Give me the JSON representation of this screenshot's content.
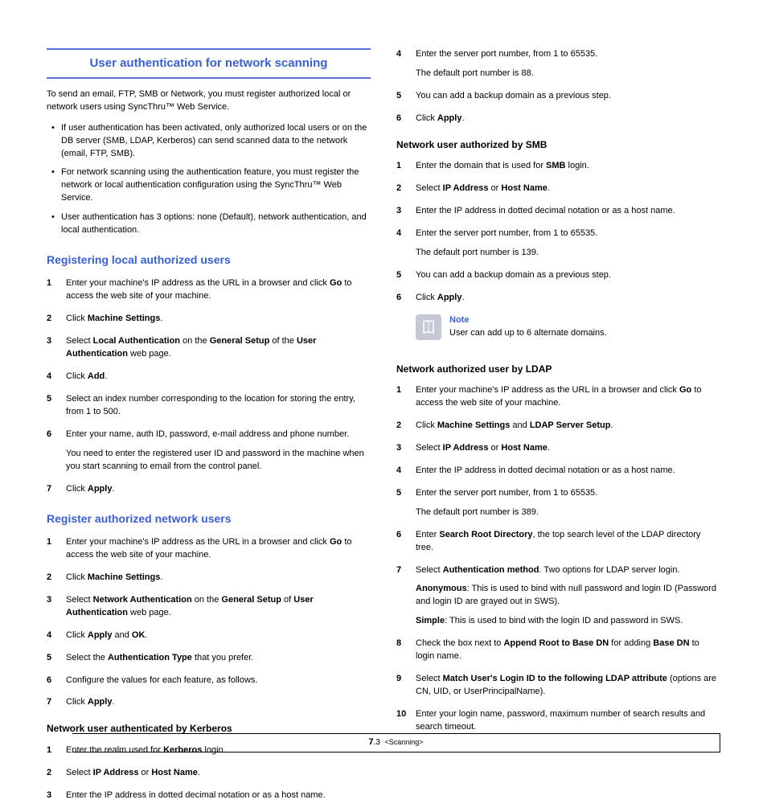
{
  "heading_main": "User authentication for network scanning",
  "intro": "To send an email, FTP, SMB or Network, you must register authorized local or network users using SyncThru™ Web Service.",
  "bullets": [
    "If user authentication has been activated, only authorized local users or on the DB server (SMB, LDAP, Kerberos) can send scanned data to the network (email, FTP, SMB).",
    "For network scanning using the authentication feature, you must register the network or local authentication configuration using the SyncThru™ Web Service.",
    "User authentication has 3 options: none (Default), network authentication, and local authentication."
  ],
  "sec_local": {
    "title": "Registering local authorized users",
    "steps": [
      {
        "pre": "Enter your machine's IP address as the URL in a browser and click ",
        "b1": "Go",
        "post": " to access the web site of your machine."
      },
      {
        "pre": "Click ",
        "b1": "Machine Settings",
        "post": "."
      },
      {
        "pre": "Select ",
        "b1": "Local Authentication",
        "mid": " on the  ",
        "b2": "General Setup",
        "mid2": " of the ",
        "b3": "User Authentication",
        "post": " web page."
      },
      {
        "pre": "Click ",
        "b1": "Add",
        "post": "."
      },
      {
        "plain": "Select an index number corresponding to the location for storing the entry, from 1 to 500."
      },
      {
        "plain": "Enter your name, auth ID, password, e-mail address and phone number.",
        "extra": "You need to enter the registered user ID and password in the machine when you start scanning to email from the control panel."
      },
      {
        "pre": "Click ",
        "b1": "Apply",
        "post": "."
      }
    ]
  },
  "sec_net": {
    "title": "Register authorized network users",
    "steps": [
      {
        "pre": "Enter your machine's IP address as the URL in a browser and click ",
        "b1": "Go",
        "post": " to access the web site of your machine."
      },
      {
        "pre": "Click ",
        "b1": "Machine Settings",
        "post": "."
      },
      {
        "pre": "Select ",
        "b1": "Network Authentication",
        "mid": " on the  ",
        "b2": "General Setup",
        "mid2": " of ",
        "b3": "User Authentication",
        "post": " web page."
      },
      {
        "pre": "Click ",
        "b1": "Apply",
        "mid": " and ",
        "b2": "OK",
        "post": "."
      },
      {
        "pre": "Select the ",
        "b1": "Authentication Type",
        "post": " that you prefer."
      },
      {
        "plain": "Configure the values for each feature, as follows."
      },
      {
        "pre": "Click ",
        "b1": "Apply",
        "post": "."
      }
    ]
  },
  "sec_kerb": {
    "title": "Network user authenticated by Kerberos",
    "steps": [
      {
        "pre": "Enter the realm used for ",
        "b1": "Kerberos",
        "post": " login."
      },
      {
        "pre": "Select ",
        "b1": "IP Address",
        "mid": " or ",
        "b2": "Host Name",
        "post": "."
      },
      {
        "plain": "Enter the IP address in dotted decimal notation or as a host name."
      },
      {
        "plain": "Enter the server port number, from 1 to 65535.",
        "extra": "The default port number is 88."
      },
      {
        "plain": "You can add a backup domain as a previous step."
      },
      {
        "pre": "Click ",
        "b1": "Apply",
        "post": "."
      }
    ]
  },
  "sec_smb": {
    "title": "Network user authorized by SMB",
    "steps": [
      {
        "pre": "Enter the domain that is used for ",
        "b1": "SMB",
        "post": " login."
      },
      {
        "pre": "Select ",
        "b1": "IP Address",
        "mid": " or ",
        "b2": "Host Name",
        "post": "."
      },
      {
        "plain": "Enter the IP address in dotted decimal notation or as a host name."
      },
      {
        "plain": "Enter the server port number, from 1 to 65535.",
        "extra": "The default port number is 139."
      },
      {
        "plain": "You can add a backup domain as a previous step."
      },
      {
        "pre": "Click ",
        "b1": "Apply",
        "post": "."
      }
    ]
  },
  "note": {
    "title": "Note",
    "text": "User can add up to 6 alternate domains."
  },
  "sec_ldap": {
    "title": "Network authorized user by LDAP",
    "steps": [
      {
        "pre": "Enter your machine's IP address as the URL in a browser and click ",
        "b1": "Go",
        "post": " to access the web site of your machine."
      },
      {
        "pre": "Click ",
        "b1": "Machine Settings",
        "mid": " and ",
        "b2": "LDAP Server Setup",
        "post": "."
      },
      {
        "pre": "Select ",
        "b1": "IP Address",
        "mid": " or ",
        "b2": "Host Name",
        "post": "."
      },
      {
        "plain": "Enter the IP address in dotted decimal notation or as a host name."
      },
      {
        "plain": "Enter the server port number, from 1 to 65535.",
        "extra": "The default port number is 389."
      },
      {
        "pre": "Enter ",
        "b1": "Search Root Directory",
        "post": ", the top search level of the LDAP directory tree."
      },
      {
        "pre": "Select ",
        "b1": "Authentication method",
        "post": ". Two options for LDAP server login.",
        "extra_html": true,
        "anon_lbl": "Anonymous",
        "anon_txt": ": This is used to bind with null password and login ID (Password and login ID are grayed out in SWS).",
        "simple_lbl": "Simple",
        "simple_txt": ": This is used to bind with the login ID and password in SWS."
      },
      {
        "pre": "Check the box next to ",
        "b1": "Append Root to Base DN",
        "mid": " for adding ",
        "b2": "Base DN",
        "post": " to login name."
      },
      {
        "pre": "Select ",
        "b1": "Match User's Login ID to the following LDAP attribute",
        "post": " (options are CN, UID, or UserPrincipalName)."
      },
      {
        "plain": "Enter your login name, password, maximum number of search results and search timeout."
      }
    ]
  },
  "footer": {
    "page": "7",
    "sub": ".3",
    "section": "<Scanning>"
  }
}
